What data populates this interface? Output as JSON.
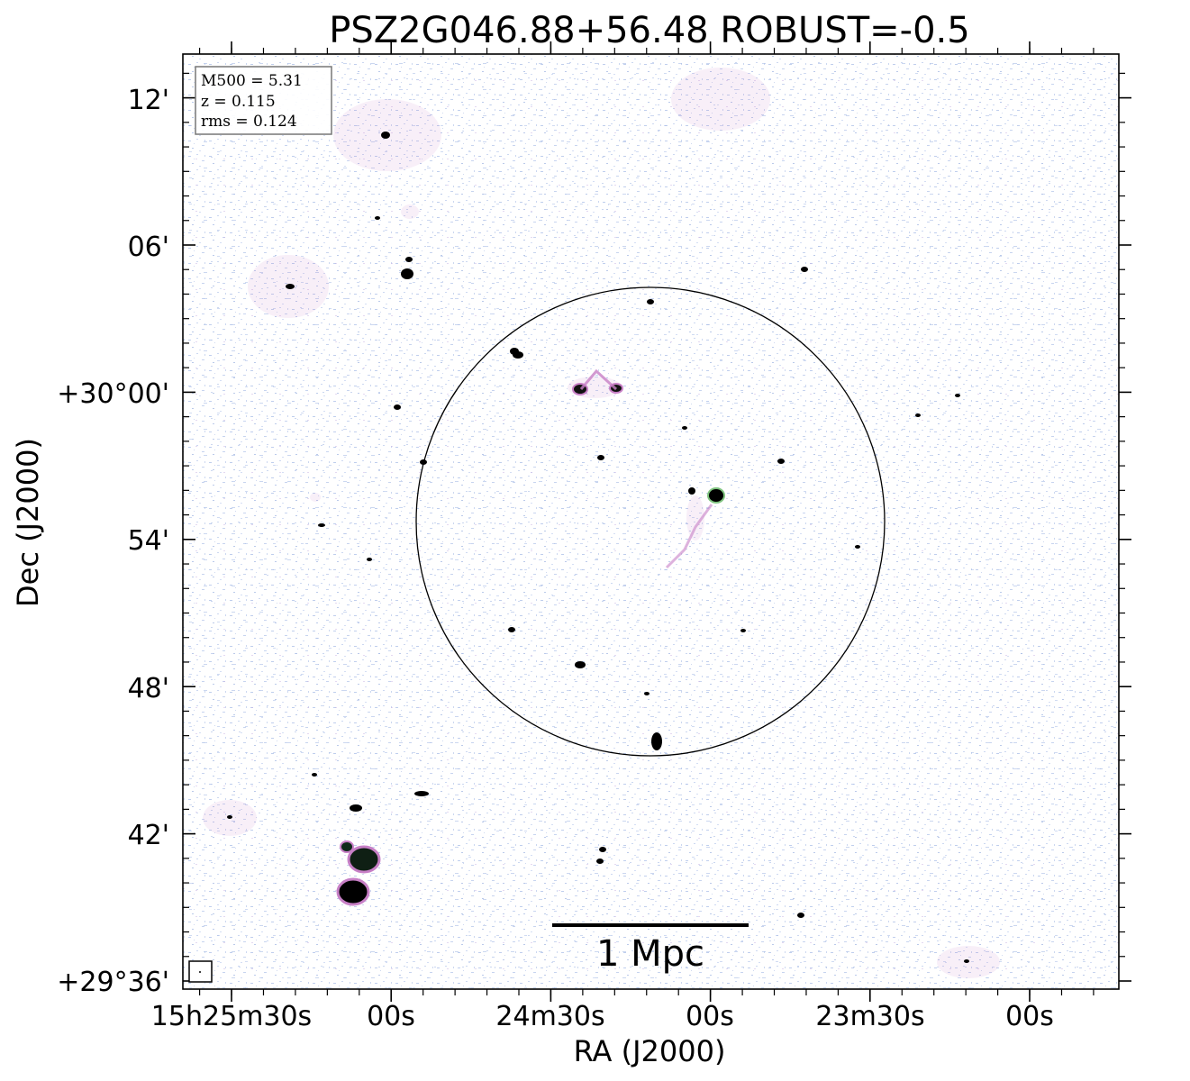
{
  "title": "PSZ2G046.88+56.48 ROBUST=-0.5",
  "info_box": {
    "mass_label": "M500 = 5.31",
    "redshift_label": "z = 0.115",
    "rms_label": "rms = 0.124"
  },
  "axes": {
    "xlabel": "RA (J2000)",
    "ylabel": "Dec (J2000)",
    "x_ticks": [
      "15h25m30s",
      "00s",
      "24m30s",
      "00s",
      "23m30s",
      "00s"
    ],
    "y_ticks": [
      "+29°36'",
      "42'",
      "48'",
      "54'",
      "+30°00'",
      "06'",
      "12'"
    ]
  },
  "scale_bar": {
    "label": "1 Mpc"
  },
  "colors": {
    "noise": "#a9bde6",
    "faint_emission": "#c77fc6",
    "bright_source": "#000000",
    "outline": "#000000"
  }
}
